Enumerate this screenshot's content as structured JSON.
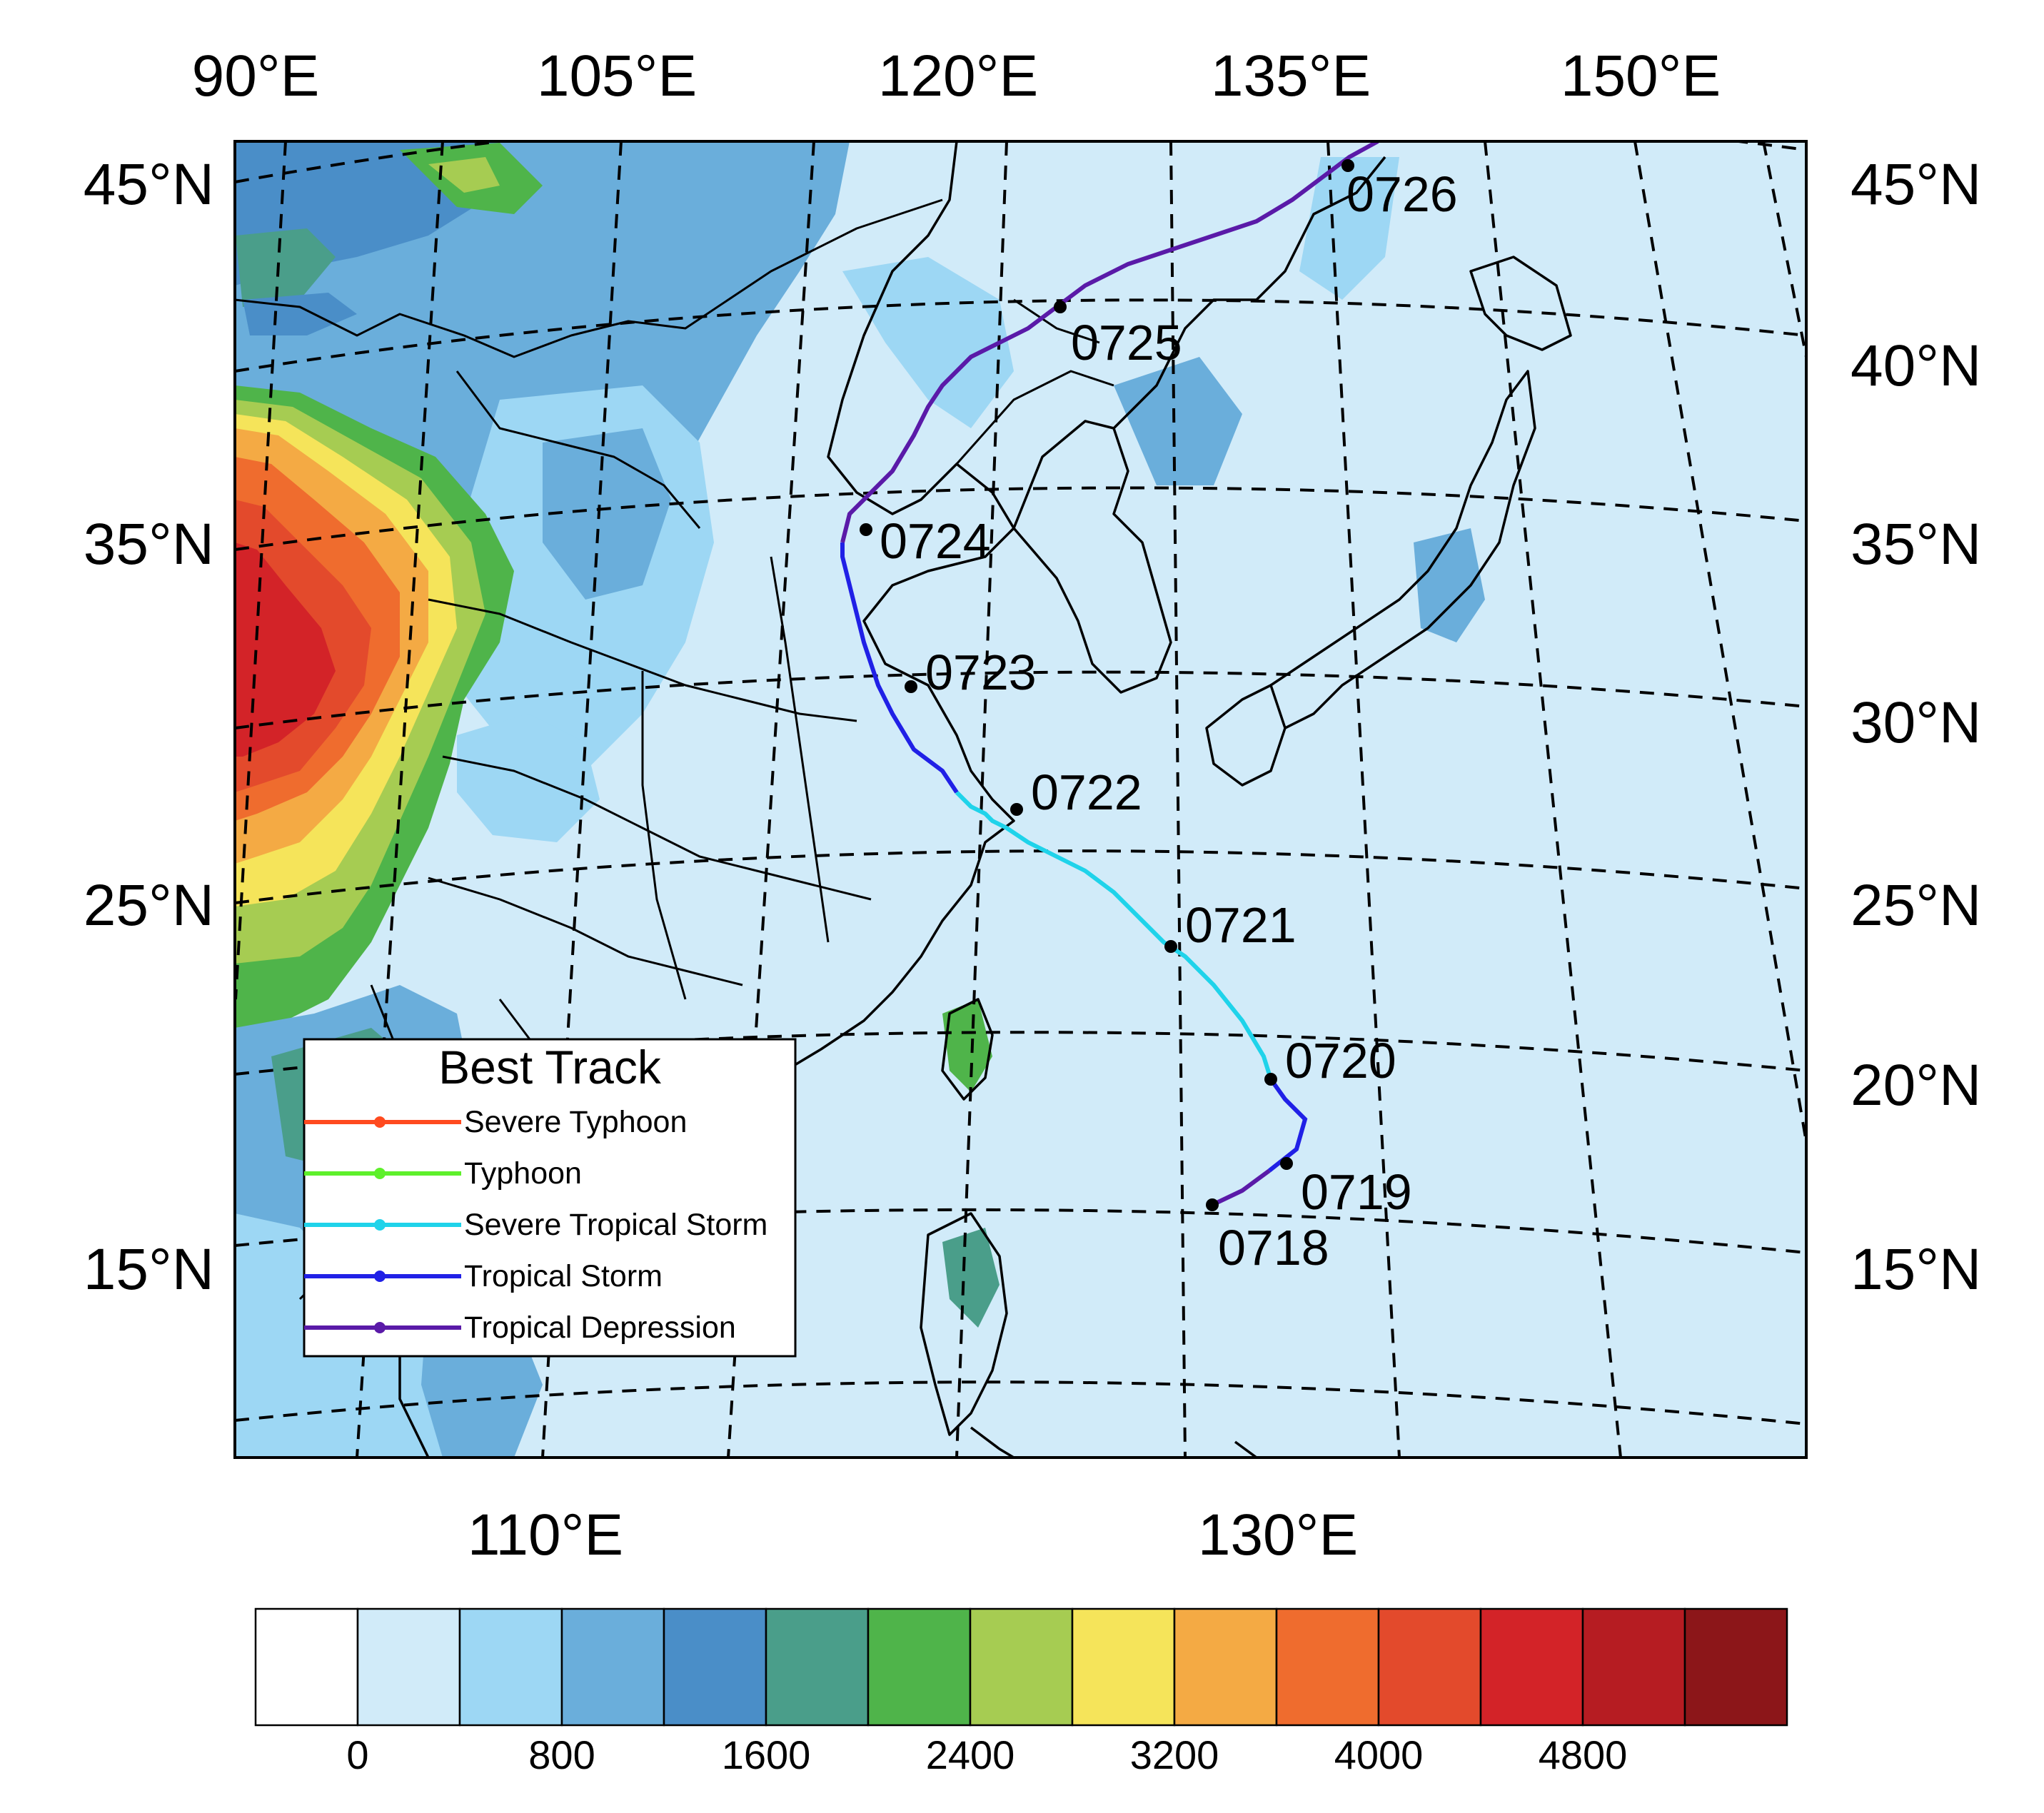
{
  "top_lon_labels": [
    "90°E",
    "105°E",
    "120°E",
    "135°E",
    "150°E"
  ],
  "bottom_lon_labels": [
    "110°E",
    "130°E"
  ],
  "left_lat_labels": [
    "45°N",
    "35°N",
    "25°N",
    "15°N"
  ],
  "right_lat_labels": [
    "45°N",
    "40°N",
    "35°N",
    "30°N",
    "25°N",
    "20°N",
    "15°N"
  ],
  "legend": {
    "title": "Best Track",
    "entries": [
      {
        "label": "Severe Typhoon",
        "color": "#ff4a1f"
      },
      {
        "label": "Typhoon",
        "color": "#5ef02b"
      },
      {
        "label": "Severe Tropical Storm",
        "color": "#1fd3ea"
      },
      {
        "label": "Tropical Storm",
        "color": "#2020e6"
      },
      {
        "label": "Tropical Depression",
        "color": "#5a1aa8"
      }
    ]
  },
  "track": {
    "points": [
      {
        "stamp": "0718",
        "category": "Tropical Depression"
      },
      {
        "stamp": "0719",
        "category": "Tropical Storm"
      },
      {
        "stamp": "0720",
        "category": "Severe Tropical Storm"
      },
      {
        "stamp": "0721",
        "category": "Severe Tropical Storm"
      },
      {
        "stamp": "0722",
        "category": "Tropical Storm"
      },
      {
        "stamp": "0723",
        "category": "Tropical Storm"
      },
      {
        "stamp": "0724",
        "category": "Tropical Depression"
      },
      {
        "stamp": "0725",
        "category": "Tropical Depression"
      },
      {
        "stamp": "0726",
        "category": "Tropical Depression"
      }
    ]
  },
  "colorbar": {
    "tick_labels": [
      "0",
      "800",
      "1600",
      "2400",
      "3200",
      "4000",
      "4800"
    ],
    "colors": [
      "#ffffff",
      "#d1ebf9",
      "#9dd7f4",
      "#6aaedb",
      "#4a8ec8",
      "#4a9e8a",
      "#4fb44a",
      "#a6cc52",
      "#f5e45a",
      "#f4aa44",
      "#ef6c2e",
      "#e34a2c",
      "#d32328",
      "#b61c22",
      "#8c1619"
    ]
  },
  "colors": {
    "ocean": "#d1ebf9",
    "lowland": "#d1ebf9",
    "upland": "#9dd7f4"
  }
}
